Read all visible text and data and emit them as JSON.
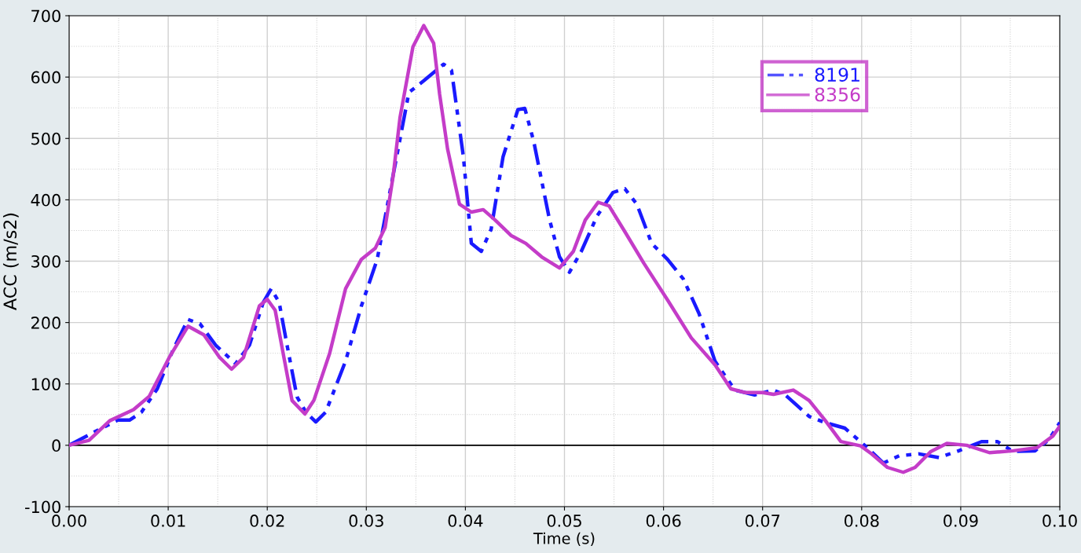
{
  "chart_data": {
    "type": "line",
    "xlabel": "Time (s)",
    "ylabel": "ACC (m/s2)",
    "xlim": [
      0,
      0.1
    ],
    "ylim": [
      -100,
      700
    ],
    "xticks": [
      {
        "value": 0,
        "label": "0.00"
      },
      0.01,
      0.02,
      0.03,
      0.04,
      0.05,
      0.06,
      0.07,
      0.08,
      0.09,
      {
        "value": 0.1,
        "label": "0.10"
      }
    ],
    "yticks": [
      -100,
      0,
      100,
      200,
      300,
      400,
      500,
      600,
      700
    ],
    "grid": true,
    "legend": "top right",
    "marker": "none",
    "ref_lines": [
      {
        "axis": "y",
        "value": 0,
        "color": "#000000"
      }
    ],
    "series": [
      {
        "name": "8191",
        "color": "#1a1aff",
        "line_style": "dashed",
        "x": [
          0,
          0.0033,
          0.0049,
          0.0061,
          0.0073,
          0.0089,
          0.0105,
          0.012,
          0.0132,
          0.0148,
          0.0168,
          0.0182,
          0.0196,
          0.0204,
          0.0212,
          0.022,
          0.023,
          0.0239,
          0.0249,
          0.0259,
          0.0279,
          0.0295,
          0.0311,
          0.0323,
          0.0343,
          0.0358,
          0.0378,
          0.0386,
          0.0398,
          0.0406,
          0.0416,
          0.0426,
          0.0438,
          0.0453,
          0.046,
          0.0469,
          0.0485,
          0.0495,
          0.0505,
          0.0517,
          0.0533,
          0.0549,
          0.0561,
          0.0573,
          0.0588,
          0.0604,
          0.062,
          0.0636,
          0.0652,
          0.0672,
          0.0692,
          0.0711,
          0.0723,
          0.0747,
          0.0763,
          0.0783,
          0.0803,
          0.0822,
          0.0838,
          0.0858,
          0.0878,
          0.0898,
          0.0921,
          0.0937,
          0.0953,
          0.0975,
          0.0989,
          0.1
        ],
        "values": [
          0,
          28,
          41,
          41,
          54,
          92,
          156,
          205,
          198,
          163,
          133,
          163,
          233,
          255,
          233,
          163,
          79,
          54,
          38,
          54,
          137,
          227,
          303,
          406,
          575,
          594,
          621,
          611,
          470,
          329,
          316,
          352,
          470,
          547,
          549,
          495,
          367,
          307,
          282,
          316,
          374,
          412,
          418,
          393,
          329,
          303,
          271,
          214,
          137,
          90,
          82,
          90,
          82,
          47,
          37,
          28,
          0,
          -29,
          -17,
          -14,
          -20,
          -9,
          6,
          6,
          -10,
          -9,
          9,
          37
        ]
      },
      {
        "name": "8356",
        "color": "#c43cc8",
        "line_style": "solid",
        "x": [
          0,
          0.002,
          0.0041,
          0.0065,
          0.0081,
          0.0101,
          0.012,
          0.0136,
          0.0152,
          0.0164,
          0.0176,
          0.0192,
          0.02,
          0.0208,
          0.0216,
          0.0225,
          0.0238,
          0.0247,
          0.0263,
          0.0279,
          0.0295,
          0.0309,
          0.0319,
          0.0327,
          0.0334,
          0.0347,
          0.0358,
          0.0368,
          0.0374,
          0.0382,
          0.0394,
          0.0406,
          0.0418,
          0.043,
          0.0446,
          0.0461,
          0.0477,
          0.0495,
          0.0509,
          0.0521,
          0.0534,
          0.0545,
          0.0561,
          0.058,
          0.0604,
          0.0628,
          0.0652,
          0.0668,
          0.0682,
          0.07,
          0.0711,
          0.0731,
          0.0747,
          0.0763,
          0.0779,
          0.0799,
          0.081,
          0.0826,
          0.0842,
          0.0854,
          0.087,
          0.0886,
          0.0906,
          0.0929,
          0.0953,
          0.0977,
          0.0993,
          0.1
        ],
        "values": [
          0,
          8,
          40,
          58,
          80,
          143,
          194,
          180,
          143,
          124,
          143,
          227,
          238,
          220,
          150,
          73,
          51,
          73,
          150,
          255,
          303,
          321,
          355,
          438,
          534,
          649,
          684,
          655,
          572,
          483,
          393,
          380,
          384,
          367,
          342,
          329,
          307,
          289,
          316,
          367,
          396,
          390,
          348,
          297,
          237,
          175,
          131,
          92,
          86,
          86,
          83,
          90,
          73,
          41,
          6,
          -1,
          -14,
          -36,
          -44,
          -36,
          -10,
          3,
          0,
          -12,
          -9,
          -4,
          15,
          31
        ]
      }
    ]
  }
}
